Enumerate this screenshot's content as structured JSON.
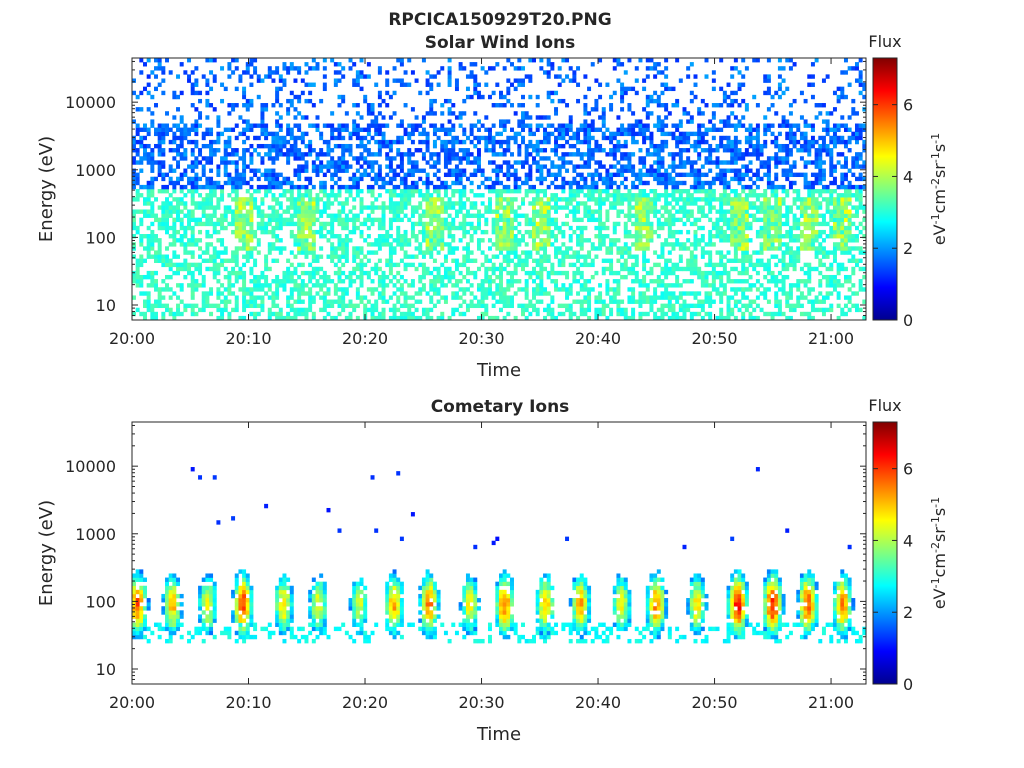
{
  "figure_title": "RPCICA150929T20.PNG",
  "colors": {
    "axis": "#262626",
    "background": "#ffffff",
    "colormap": "jet"
  },
  "chart_data": [
    {
      "type": "heatmap",
      "title": "Solar Wind Ions",
      "xlabel": "Time",
      "ylabel": "Energy (eV)",
      "x_ticks": [
        "20:00",
        "20:10",
        "20:20",
        "20:30",
        "20:40",
        "20:50",
        "21:00"
      ],
      "xlim": [
        "20:00",
        "21:03"
      ],
      "y_scale": "log",
      "y_ticks": [
        10,
        100,
        1000,
        10000
      ],
      "y_tick_labels": [
        "10",
        "100",
        "1000",
        "10000"
      ],
      "ylim": [
        6,
        45000
      ],
      "colorbar": {
        "label": "Flux",
        "units": "eV-1cm-2sr-1s-1",
        "range": [
          0,
          7.3
        ],
        "ticks": [
          0,
          2,
          4,
          6
        ],
        "tick_labels": [
          "0",
          "2",
          "4",
          "6"
        ]
      },
      "description_values": {
        "background_flux_level": 1.2,
        "low_energy_flux_level": 2.8,
        "enhancement_minutes": [
          9.5,
          15,
          26,
          32,
          35,
          44,
          52,
          55,
          58,
          61
        ]
      }
    },
    {
      "type": "heatmap",
      "title": "Cometary Ions",
      "xlabel": "Time",
      "ylabel": "Energy (eV)",
      "x_ticks": [
        "20:00",
        "20:10",
        "20:20",
        "20:30",
        "20:40",
        "20:50",
        "21:00"
      ],
      "xlim": [
        "20:00",
        "21:03"
      ],
      "y_scale": "log",
      "y_ticks": [
        10,
        100,
        1000,
        10000
      ],
      "y_tick_labels": [
        "10",
        "100",
        "1000",
        "10000"
      ],
      "ylim": [
        6,
        45000
      ],
      "colorbar": {
        "label": "Flux",
        "units": "eV-1cm-2sr-1s-1",
        "range": [
          0,
          7.3
        ],
        "ticks": [
          0,
          2,
          4,
          6
        ],
        "tick_labels": [
          "0",
          "2",
          "4",
          "6"
        ]
      },
      "description_values": {
        "burst_center_minutes": [
          0.5,
          3.5,
          6.5,
          9.5,
          13,
          16,
          19.5,
          22.5,
          25.5,
          29,
          32,
          35.5,
          38.5,
          42,
          45,
          48.5,
          52,
          55,
          58,
          61
        ],
        "burst_peak_flux": [
          5.8,
          5.0,
          4.6,
          6.0,
          4.8,
          4.5,
          4.2,
          5.2,
          5.5,
          4.6,
          5.6,
          5.0,
          5.2,
          4.5,
          5.5,
          4.8,
          6.3,
          6.2,
          5.8,
          5.5
        ],
        "burst_peak_energy_eV": 90
      }
    }
  ]
}
